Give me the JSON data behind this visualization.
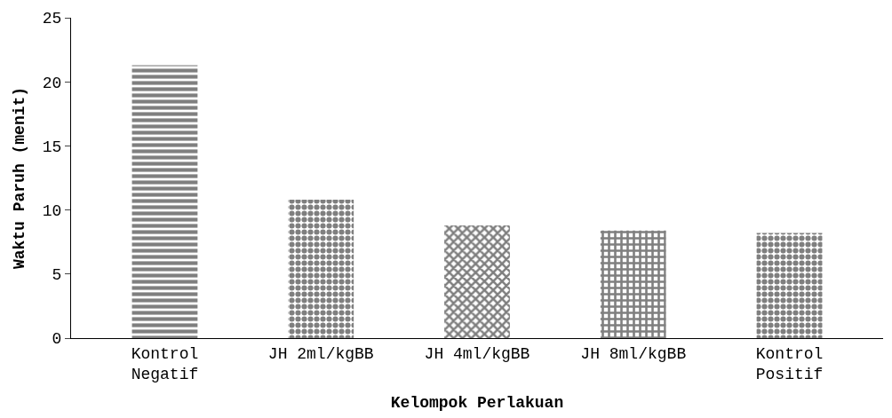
{
  "chart_data": {
    "type": "bar",
    "xlabel": "Kelompok Perlakuan",
    "ylabel": "Waktu Paruh (menit)",
    "categories": [
      "Kontrol\nNegatif",
      "JH 2ml/kgBB",
      "JH 4ml/kgBB",
      "JH 8ml/kgBB",
      "Kontrol\nPositif"
    ],
    "values": [
      21.3,
      10.8,
      8.8,
      8.4,
      8.2
    ],
    "color": "#000000",
    "ylim": [
      0,
      25
    ],
    "yticks": [
      0,
      5,
      10,
      15,
      20,
      25
    ]
  }
}
